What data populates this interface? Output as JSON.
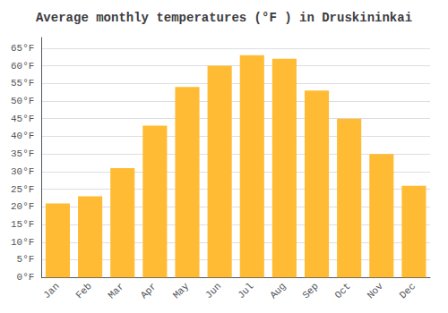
{
  "chart_data": {
    "type": "bar",
    "title": "Average monthly temperatures (°F ) in Druskininkai",
    "categories": [
      "Jan",
      "Feb",
      "Mar",
      "Apr",
      "May",
      "Jun",
      "Jul",
      "Aug",
      "Sep",
      "Oct",
      "Nov",
      "Dec"
    ],
    "values": [
      21,
      23,
      31,
      43,
      54,
      60,
      63,
      62,
      53,
      45,
      35,
      26
    ],
    "color": "#FFBB33",
    "ylim": [
      0,
      68
    ],
    "yticks": [
      {
        "value": 0,
        "label": "0°F"
      },
      {
        "value": 5,
        "label": "5°F"
      },
      {
        "value": 10,
        "label": "10°F"
      },
      {
        "value": 15,
        "label": "15°F"
      },
      {
        "value": 20,
        "label": "20°F"
      },
      {
        "value": 25,
        "label": "25°F"
      },
      {
        "value": 30,
        "label": "30°F"
      },
      {
        "value": 35,
        "label": "35°F"
      },
      {
        "value": 40,
        "label": "40°F"
      },
      {
        "value": 45,
        "label": "45°F"
      },
      {
        "value": 50,
        "label": "50°F"
      },
      {
        "value": 55,
        "label": "55°F"
      },
      {
        "value": 60,
        "label": "60°F"
      },
      {
        "value": 65,
        "label": "65°F"
      }
    ],
    "grid": true
  }
}
